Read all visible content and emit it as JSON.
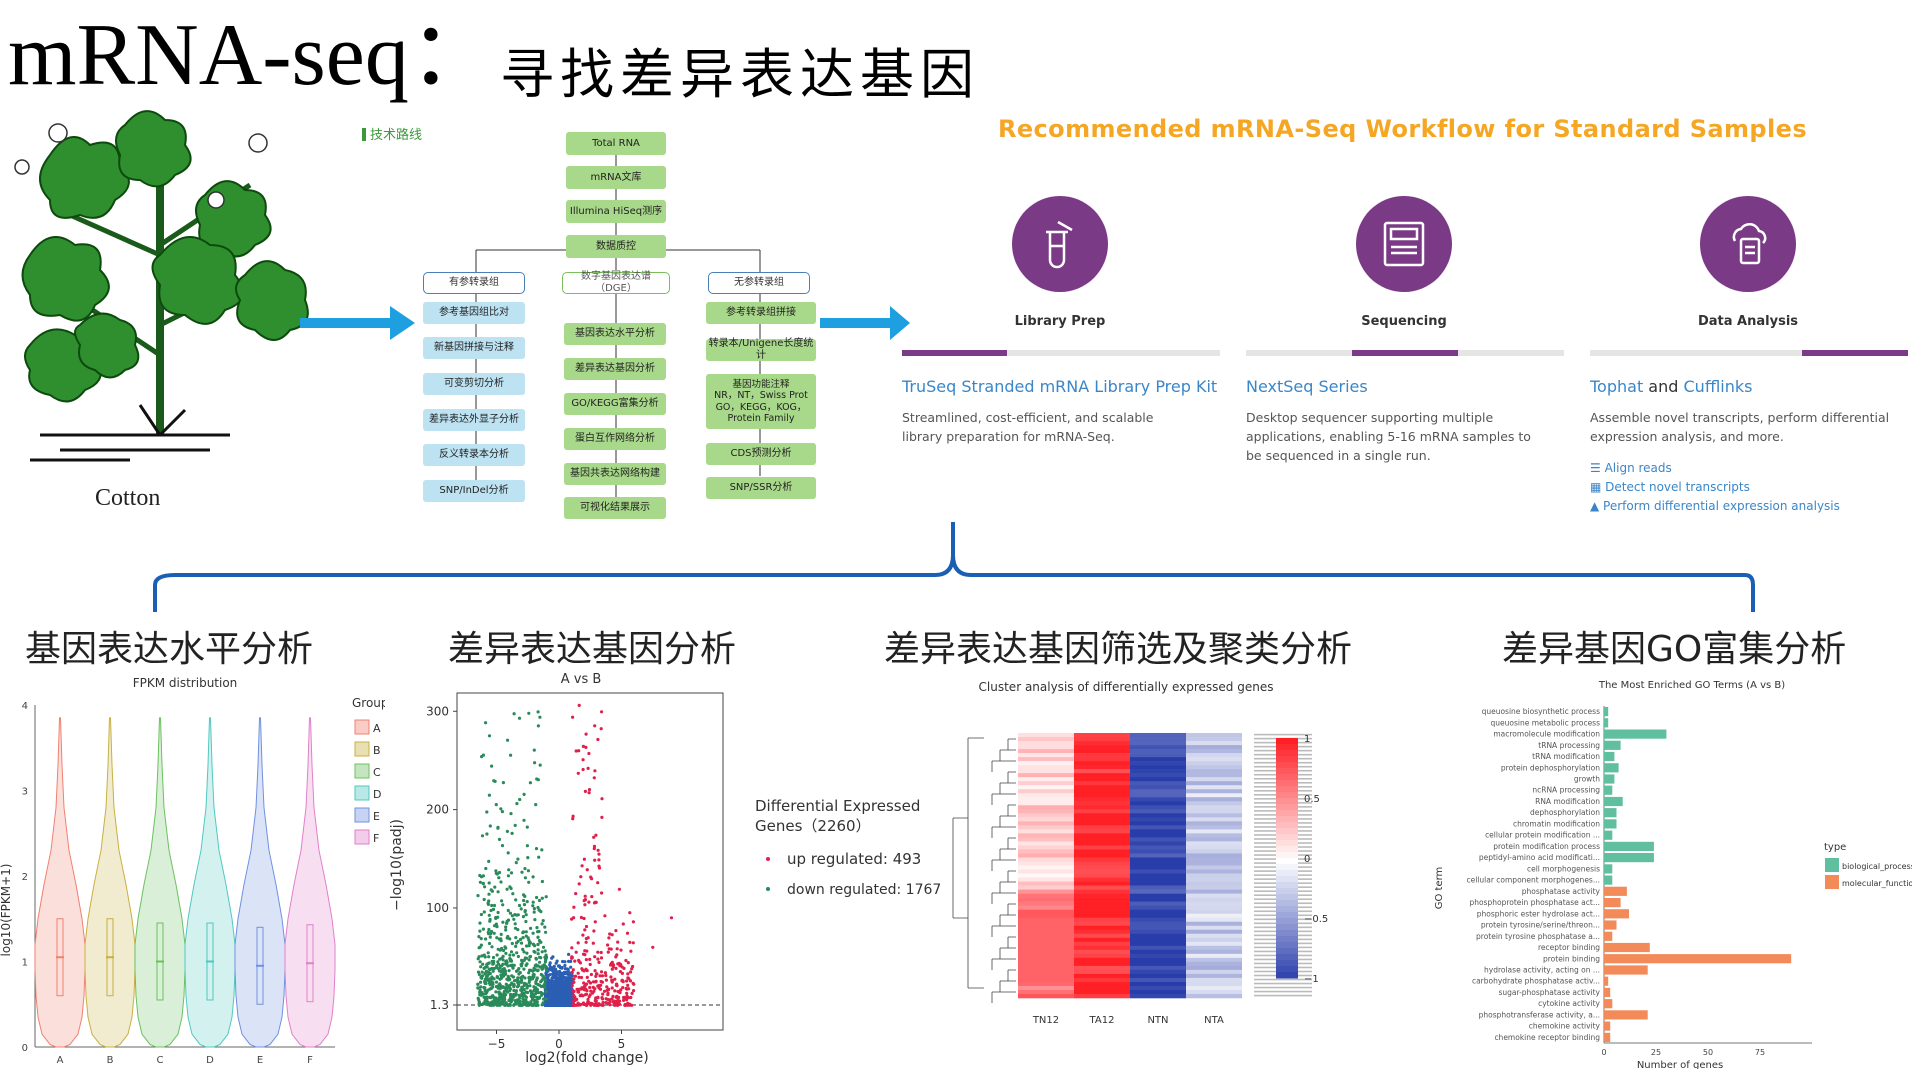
{
  "title": {
    "main": "mRNA-seq：",
    "sub": "寻找差异表达基因"
  },
  "cotton": {
    "label": "Cotton"
  },
  "pipeline": {
    "header": "技术路线",
    "top": [
      "Total RNA",
      "mRNA文库",
      "Illumina HiSeq测序",
      "数据质控"
    ],
    "branches": [
      "有参转录组",
      "数字基因表达谱（DGE）",
      "无参转录组"
    ],
    "left": [
      "参考基因组比对",
      "新基因拼接与注释",
      "可变剪切分析",
      "差异表达外显子分析",
      "反义转录本分析",
      "SNP/InDel分析"
    ],
    "middle": [
      "基因表达水平分析",
      "差异表达基因分析",
      "GO/KEGG富集分析",
      "蛋白互作网络分析",
      "基因共表达网络构建",
      "可视化结果展示"
    ],
    "right": [
      "参考转录组拼接",
      "转录本/Unigene长度统计",
      "基因功能注释\nNR，NT，Swiss Prot\nGO，KEGG，KOG，\nProtein Family",
      "CDS预测分析",
      "SNP/SSR分析"
    ]
  },
  "workflow": {
    "title": "Recommended mRNA-Seq Workflow for Standard Samples",
    "steps": [
      {
        "label": "Library Prep",
        "icon": "test-tube-icon",
        "link": "TruSeq Stranded mRNA Library Prep Kit",
        "desc": "Streamlined, cost-efficient, and scalable library preparation for mRNA-Seq."
      },
      {
        "label": "Sequencing",
        "icon": "sequencer-icon",
        "link": "NextSeq Series",
        "desc": "Desktop sequencer supporting multiple applications, enabling 5-16 mRNA samples to be sequenced in a single run."
      },
      {
        "label": "Data Analysis",
        "icon": "cloud-document-icon",
        "link_a": "Tophat",
        "link_and": " and ",
        "link_b": "Cufflinks",
        "desc": "Assemble novel transcripts, perform differential expression analysis, and more.",
        "links": [
          "Align reads",
          "Detect novel transcripts",
          "Perform differential expression analysis"
        ]
      }
    ],
    "accent": "#7b3a86"
  },
  "sections": [
    "基因表达水平分析",
    "差异表达基因分析",
    "差异表达基因筛选及聚类分析",
    "差异基因GO富集分析"
  ],
  "chart_data": [
    {
      "type": "violin",
      "title": "FPKM distribution",
      "ylabel": "log10(FPKM+1)",
      "ylim": [
        0,
        4
      ],
      "y_ticks": [
        "0",
        "1",
        "2",
        "3",
        "4"
      ],
      "categories": [
        "A",
        "B",
        "C",
        "D",
        "E",
        "F"
      ],
      "legend_title": "Group",
      "medians": [
        1.05,
        1.05,
        1.0,
        1.0,
        0.95,
        0.98
      ],
      "colors": [
        "#f08070",
        "#c8b040",
        "#6cc060",
        "#50c8c0",
        "#7090e0",
        "#e080c8"
      ]
    },
    {
      "type": "scatter",
      "title": "A vs B",
      "xlabel": "log2(fold change)",
      "ylabel": "−log10(padj)",
      "x_ticks": [
        "−5",
        "0",
        "5"
      ],
      "y_ticks": [
        "1.3",
        "100",
        "200",
        "300"
      ],
      "legend_title": "Differential Expressed Genes（2260）",
      "series": [
        {
          "name": "up regulated: 493",
          "color": "#e0204a"
        },
        {
          "name": "down regulated: 1767",
          "color": "#2a8a5a"
        }
      ]
    },
    {
      "type": "heatmap",
      "title": "Cluster analysis of differentially expressed genes",
      "columns": [
        "TN12",
        "TA12",
        "NTN",
        "NTA"
      ],
      "colorbar_ticks": [
        "1",
        "0.5",
        "0",
        "−0.5",
        "−1"
      ]
    },
    {
      "type": "bar",
      "title": "The Most Enriched GO Terms (A vs B)",
      "xlabel": "Number of genes",
      "ylabel": "GO term",
      "x_ticks": [
        "0",
        "25",
        "50",
        "75"
      ],
      "legend_title": "type",
      "legend": [
        "biological_process",
        "molecular_function"
      ],
      "colors": {
        "biological_process": "#5fbf9f",
        "molecular_function": "#f28a5a"
      },
      "categories": [
        "queuosine biosynthetic process",
        "queuosine metabolic process",
        "macromolecule modification",
        "tRNA processing",
        "tRNA modification",
        "protein dephosphorylation",
        "growth",
        "ncRNA processing",
        "RNA modification",
        "dephosphorylation",
        "chromatin modification",
        "cellular protein modification ...",
        "protein modification process",
        "peptidyl-amino acid modificati...",
        "cell morphogenesis",
        "cellular component morphogenes...",
        "phosphatase activity",
        "phosphoprotein phosphatase act...",
        "phosphoric ester hydrolase act...",
        "protein tyrosine/serine/threon...",
        "protein tyrosine phosphatase a...",
        "receptor binding",
        "protein binding",
        "hydrolase activity, acting on ...",
        "carbohydrate phosphatase activ...",
        "sugar-phosphatase activity",
        "cytokine activity",
        "phosphotransferase activity, a...",
        "chemokine activity",
        "chemokine receptor binding"
      ],
      "values": [
        2,
        2,
        30,
        8,
        5,
        7,
        5,
        4,
        9,
        6,
        6,
        4,
        24,
        24,
        4,
        4,
        11,
        8,
        12,
        6,
        4,
        22,
        90,
        21,
        2,
        3,
        4,
        21,
        3,
        3
      ],
      "types": [
        "bp",
        "bp",
        "bp",
        "bp",
        "bp",
        "bp",
        "bp",
        "bp",
        "bp",
        "bp",
        "bp",
        "bp",
        "bp",
        "bp",
        "bp",
        "bp",
        "mf",
        "mf",
        "mf",
        "mf",
        "mf",
        "mf",
        "mf",
        "mf",
        "mf",
        "mf",
        "mf",
        "mf",
        "mf",
        "mf"
      ],
      "xlim": [
        0,
        100
      ]
    }
  ]
}
